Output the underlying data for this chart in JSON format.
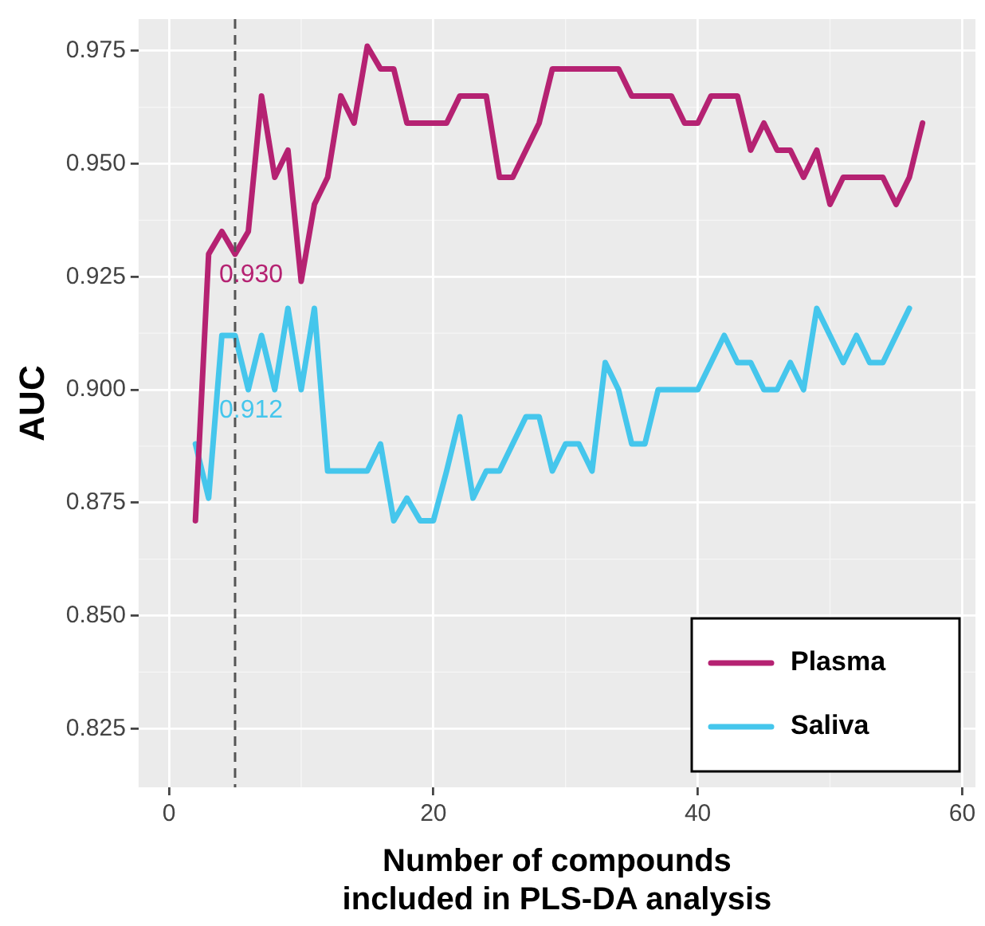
{
  "chart_data": {
    "type": "line",
    "xlabel": "Number of compounds\nincluded in PLS-DA analysis",
    "ylabel": "AUC",
    "x": [
      2,
      3,
      4,
      5,
      6,
      7,
      8,
      9,
      10,
      11,
      12,
      13,
      14,
      15,
      16,
      17,
      18,
      19,
      20,
      21,
      22,
      23,
      24,
      25,
      26,
      27,
      28,
      29,
      30,
      31,
      32,
      33,
      34,
      35,
      36,
      37,
      38,
      39,
      40,
      41,
      42,
      43,
      44,
      45,
      46,
      47,
      48,
      49,
      50,
      51,
      52,
      53,
      54,
      55,
      56,
      57
    ],
    "series": [
      {
        "name": "Plasma",
        "color": "#b52272",
        "values": [
          0.871,
          0.93,
          0.935,
          0.93,
          0.935,
          0.965,
          0.947,
          0.953,
          0.924,
          0.941,
          0.947,
          0.965,
          0.959,
          0.976,
          0.971,
          0.971,
          0.959,
          0.959,
          0.959,
          0.959,
          0.965,
          0.965,
          0.965,
          0.947,
          0.947,
          0.953,
          0.959,
          0.971,
          0.971,
          0.971,
          0.971,
          0.971,
          0.971,
          0.965,
          0.965,
          0.965,
          0.965,
          0.959,
          0.959,
          0.965,
          0.965,
          0.965,
          0.953,
          0.959,
          0.953,
          0.953,
          0.947,
          0.953,
          0.941,
          0.947,
          0.947,
          0.947,
          0.947,
          0.941,
          0.947,
          0.959
        ]
      },
      {
        "name": "Saliva",
        "color": "#45c6ec",
        "values": [
          0.888,
          0.876,
          0.912,
          0.912,
          0.9,
          0.912,
          0.9,
          0.918,
          0.9,
          0.918,
          0.882,
          0.882,
          0.882,
          0.882,
          0.888,
          0.871,
          0.876,
          0.871,
          0.871,
          0.882,
          0.894,
          0.876,
          0.882,
          0.882,
          0.888,
          0.894,
          0.894,
          0.882,
          0.888,
          0.888,
          0.882,
          0.906,
          0.9,
          0.888,
          0.888,
          0.9,
          0.9,
          0.9,
          0.9,
          0.906,
          0.912,
          0.906,
          0.906,
          0.9,
          0.9,
          0.906,
          0.9,
          0.918,
          0.912,
          0.906,
          0.912,
          0.906,
          0.906,
          0.912,
          0.918,
          null
        ]
      }
    ],
    "xlim": [
      -2.3,
      61
    ],
    "xticks": [
      0,
      20,
      40,
      60
    ],
    "ylim": [
      0.812,
      0.982
    ],
    "yticks": [
      {
        "value": 0.825,
        "label": "0.825"
      },
      {
        "value": 0.85,
        "label": "0.850"
      },
      {
        "value": 0.875,
        "label": "0.875"
      },
      {
        "value": 0.9,
        "label": "0.900"
      },
      {
        "value": 0.925,
        "label": "0.925"
      },
      {
        "value": 0.95,
        "label": "0.950"
      },
      {
        "value": 0.975,
        "label": "0.975"
      }
    ],
    "ref_lines": [
      {
        "axis": "x",
        "value": 5,
        "color": "#555555",
        "line_style": "dashed"
      }
    ],
    "annotations": [
      {
        "text": "0.930",
        "x": 5,
        "y": 0.93
      },
      {
        "text": "0.912",
        "x": 5,
        "y": 0.912
      }
    ],
    "grid": true,
    "legend": "bottom right",
    "marker": "none",
    "line_style": "solid"
  }
}
